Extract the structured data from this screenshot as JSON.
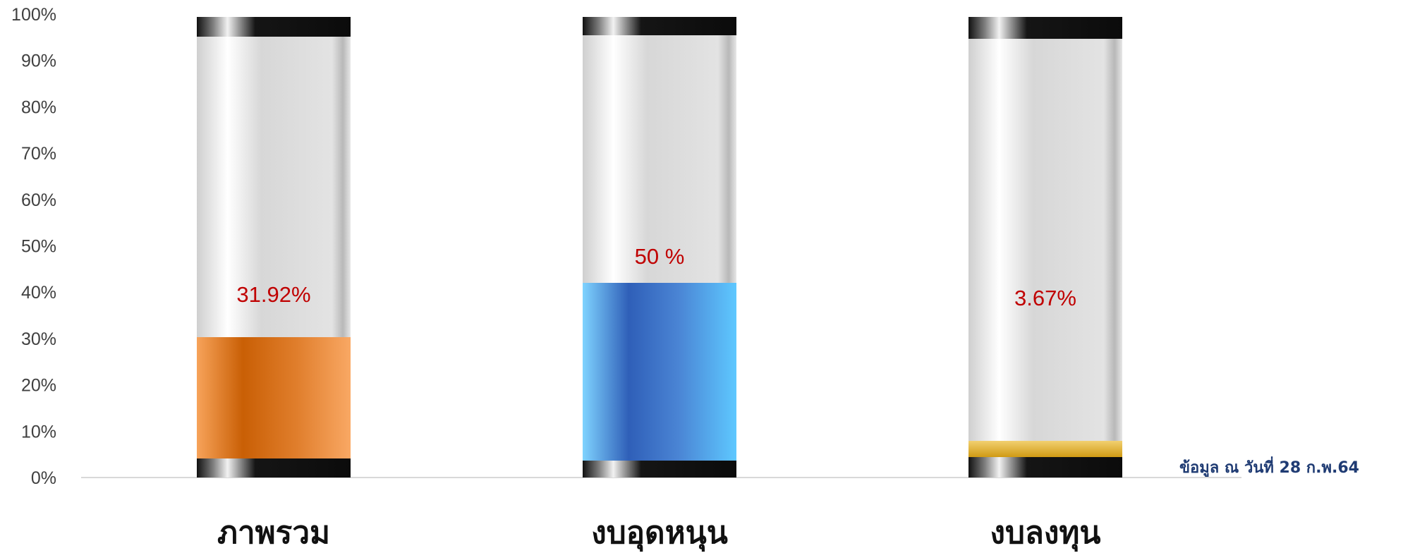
{
  "chart_data": {
    "type": "bar",
    "categories": [
      "ภาพรวม",
      "งบอุดหนุน",
      "งบลงทุน"
    ],
    "values": [
      31.92,
      50,
      3.67
    ],
    "data_labels": [
      "31.92%",
      "50 %",
      "3.67%"
    ],
    "fill_colors": [
      "#d2690a",
      "#3a6cc4",
      "#d9a521"
    ],
    "y_ticks": [
      "0%",
      "10%",
      "20%",
      "30%",
      "40%",
      "50%",
      "60%",
      "70%",
      "80%",
      "90%",
      "100%"
    ],
    "ylim": [
      0,
      100
    ],
    "ymax": 100,
    "grid": false,
    "style": "battery / cylinder bars"
  },
  "note": "ข้อมูล ณ วันที่ 28 ก.พ.64",
  "colors": {
    "data_label": "#c00000",
    "note": "#1f3b73",
    "axis_line": "#d9d9d9",
    "cap": "#111111"
  }
}
